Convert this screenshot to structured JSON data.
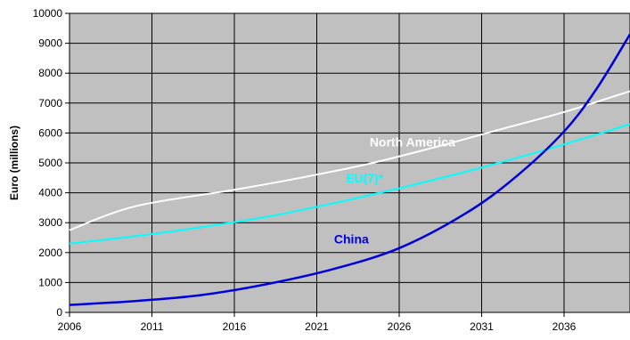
{
  "chart_data": {
    "type": "line",
    "title": "",
    "xlabel": "",
    "ylabel": "Euro (millions)",
    "xlim": [
      2006,
      2040
    ],
    "ylim": [
      0,
      10000
    ],
    "grid": true,
    "legend": "none",
    "x_ticks": [
      "2006",
      "2011",
      "2016",
      "2021",
      "2026",
      "2031",
      "2036"
    ],
    "y_ticks": [
      "0",
      "1000",
      "2000",
      "3000",
      "4000",
      "5000",
      "6000",
      "7000",
      "8000",
      "9000",
      "10000"
    ],
    "plot_background": "#c0c0c0",
    "series": [
      {
        "name": "North America",
        "color": "#ffffff",
        "x": [
          2006,
          2010,
          2016,
          2020,
          2024,
          2028,
          2032,
          2036,
          2040
        ],
        "y": [
          2750,
          3550,
          4100,
          4500,
          4950,
          5500,
          6100,
          6700,
          7400
        ]
      },
      {
        "name": "EU(7)*",
        "color": "#00ffff",
        "x": [
          2006,
          2010,
          2014,
          2018,
          2022,
          2026,
          2030,
          2034,
          2038,
          2040
        ],
        "y": [
          2300,
          2550,
          2850,
          3200,
          3650,
          4150,
          4700,
          5300,
          5950,
          6300
        ]
      },
      {
        "name": "China",
        "color": "#0000dd",
        "x": [
          2006,
          2010,
          2014,
          2018,
          2022,
          2026,
          2030,
          2033,
          2036,
          2038,
          2040
        ],
        "y": [
          250,
          380,
          580,
          950,
          1450,
          2150,
          3300,
          4500,
          6050,
          7500,
          9300
        ]
      }
    ]
  }
}
